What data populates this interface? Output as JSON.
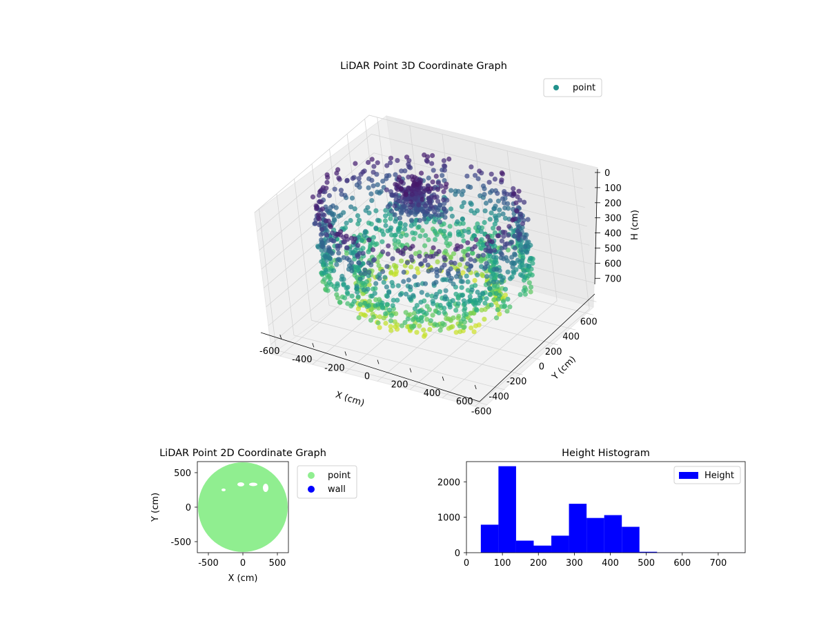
{
  "chart_data": [
    {
      "type": "scatter",
      "title": "LiDAR Point 3D Coordinate Graph",
      "xlabel": "X (cm)",
      "ylabel": "Y (cm)",
      "zlabel": "H (cm)",
      "x_ticks": [
        -600,
        -400,
        -200,
        0,
        200,
        400,
        600
      ],
      "y_ticks": [
        -600,
        -400,
        -200,
        0,
        200,
        400,
        600
      ],
      "z_ticks": [
        0,
        100,
        200,
        300,
        400,
        500,
        600,
        700
      ],
      "xlim": [
        -650,
        650
      ],
      "ylim": [
        -650,
        650
      ],
      "zlim": [
        0,
        750
      ],
      "z_inverted": true,
      "colormap": "viridis",
      "legend": {
        "position": "top-right",
        "entries": [
          {
            "label": "point",
            "color": "#21918c"
          }
        ]
      },
      "series": [
        {
          "name": "point",
          "shape": "ring",
          "radius": 550,
          "height_range": [
            50,
            480
          ]
        },
        {
          "name": "point",
          "shape": "ring",
          "radius": 380,
          "height_range": [
            300,
            600
          ]
        },
        {
          "name": "point",
          "shape": "cluster",
          "center": [
            -100,
            150
          ],
          "height_range": [
            40,
            200
          ]
        }
      ],
      "grid": true
    },
    {
      "type": "scatter",
      "title": "LiDAR Point 2D Coordinate Graph",
      "xlabel": "X (cm)",
      "ylabel": "Y (cm)",
      "x_ticks": [
        -500,
        0,
        500
      ],
      "y_ticks": [
        -500,
        0,
        500
      ],
      "xlim": [
        -660,
        660
      ],
      "ylim": [
        -660,
        660
      ],
      "legend": {
        "position": "right",
        "entries": [
          {
            "label": "point",
            "color": "#90ee90"
          },
          {
            "label": "wall",
            "color": "#0000ff"
          }
        ]
      },
      "series": [
        {
          "name": "point",
          "shape": "disc",
          "radius": 650,
          "color": "#90ee90"
        }
      ],
      "grid": false
    },
    {
      "type": "bar",
      "title": "Height Histogram",
      "bins": [
        {
          "x0": 40,
          "x1": 89,
          "count": 790
        },
        {
          "x0": 89,
          "x1": 138,
          "count": 2440
        },
        {
          "x0": 138,
          "x1": 187,
          "count": 340
        },
        {
          "x0": 187,
          "x1": 236,
          "count": 200
        },
        {
          "x0": 236,
          "x1": 285,
          "count": 480
        },
        {
          "x0": 285,
          "x1": 334,
          "count": 1380
        },
        {
          "x0": 334,
          "x1": 383,
          "count": 980
        },
        {
          "x0": 383,
          "x1": 432,
          "count": 1060
        },
        {
          "x0": 432,
          "x1": 481,
          "count": 730
        },
        {
          "x0": 481,
          "x1": 530,
          "count": 25
        },
        {
          "x0": 530,
          "x1": 579,
          "count": 5
        },
        {
          "x0": 579,
          "x1": 628,
          "count": 3
        },
        {
          "x0": 628,
          "x1": 677,
          "count": 2
        },
        {
          "x0": 677,
          "x1": 726,
          "count": 2
        },
        {
          "x0": 726,
          "x1": 775,
          "count": 2
        }
      ],
      "x_ticks": [
        0,
        100,
        200,
        300,
        400,
        500,
        600,
        700
      ],
      "y_ticks": [
        0,
        1000,
        2000
      ],
      "xlim": [
        0,
        775
      ],
      "ylim": [
        0,
        2570
      ],
      "bar_color": "#0000ff",
      "legend": {
        "position": "top-right",
        "entries": [
          {
            "label": "Height",
            "color": "#0000ff"
          }
        ]
      },
      "grid": false
    }
  ]
}
